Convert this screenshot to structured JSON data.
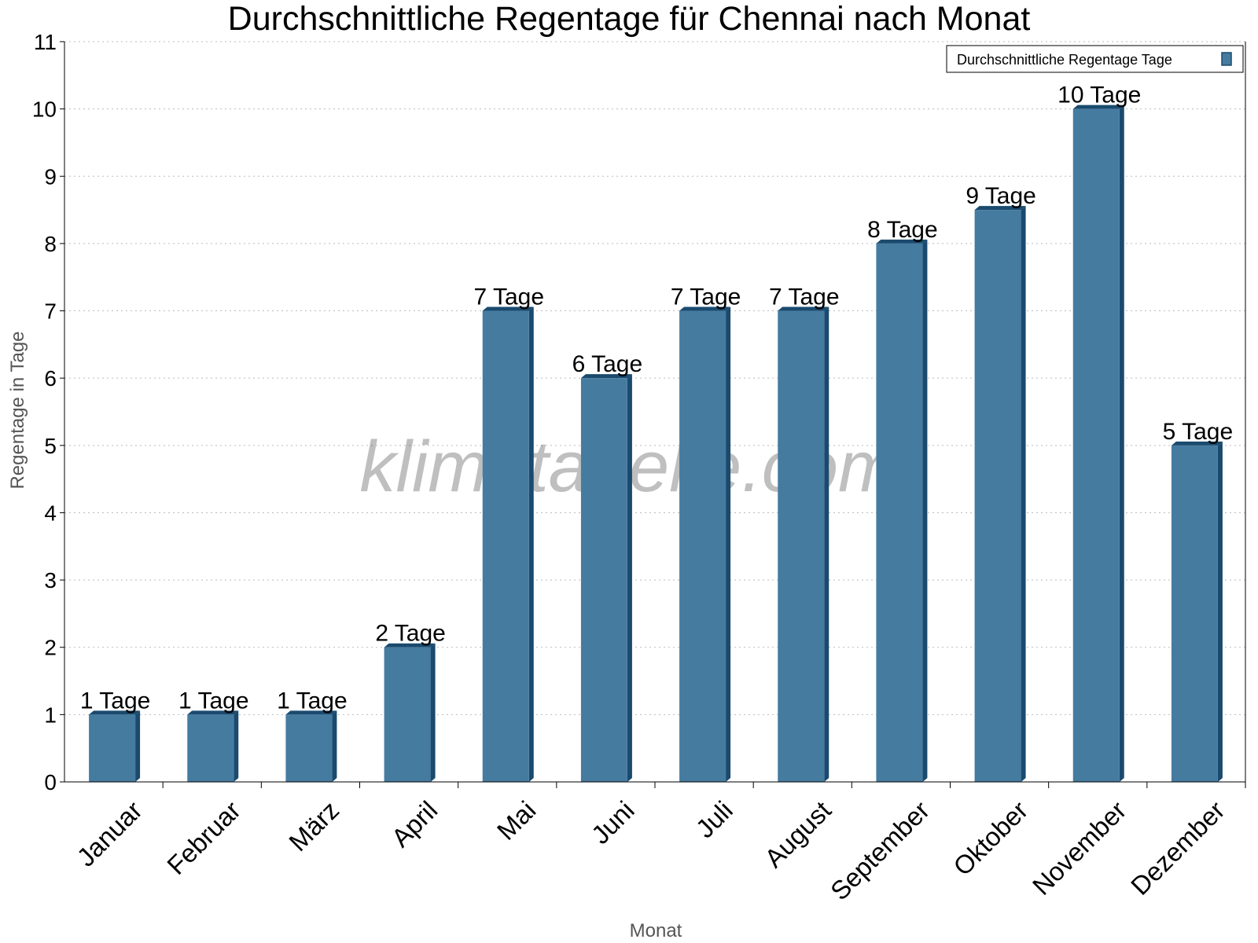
{
  "chart_data": {
    "type": "bar",
    "title": "Durchschnittliche Regentage für Chennai nach Monat",
    "xlabel": "Monat",
    "ylabel": "Regentage in Tage",
    "ylim": [
      0,
      11
    ],
    "yticks": [
      "0",
      "1",
      "2",
      "3",
      "4",
      "5",
      "6",
      "7",
      "8",
      "9",
      "10",
      "11"
    ],
    "grid": true,
    "legend_placement": "top-right",
    "watermark": "klimatabelle.com",
    "categories": [
      "Januar",
      "Februar",
      "März",
      "April",
      "Mai",
      "Juni",
      "Juli",
      "August",
      "September",
      "Oktober",
      "November",
      "Dezember"
    ],
    "series": [
      {
        "name": "Durchschnittliche Regentage Tage",
        "color": "#467ba0",
        "values": [
          1,
          1,
          1,
          2,
          7,
          6,
          7,
          7,
          8,
          8.5,
          10,
          5
        ],
        "labels": [
          "1 Tage",
          "1 Tage",
          "1 Tage",
          "2 Tage",
          "7 Tage",
          "6 Tage",
          "7 Tage",
          "7 Tage",
          "8 Tage",
          "9 Tage",
          "10 Tage",
          "5 Tage"
        ]
      }
    ]
  }
}
